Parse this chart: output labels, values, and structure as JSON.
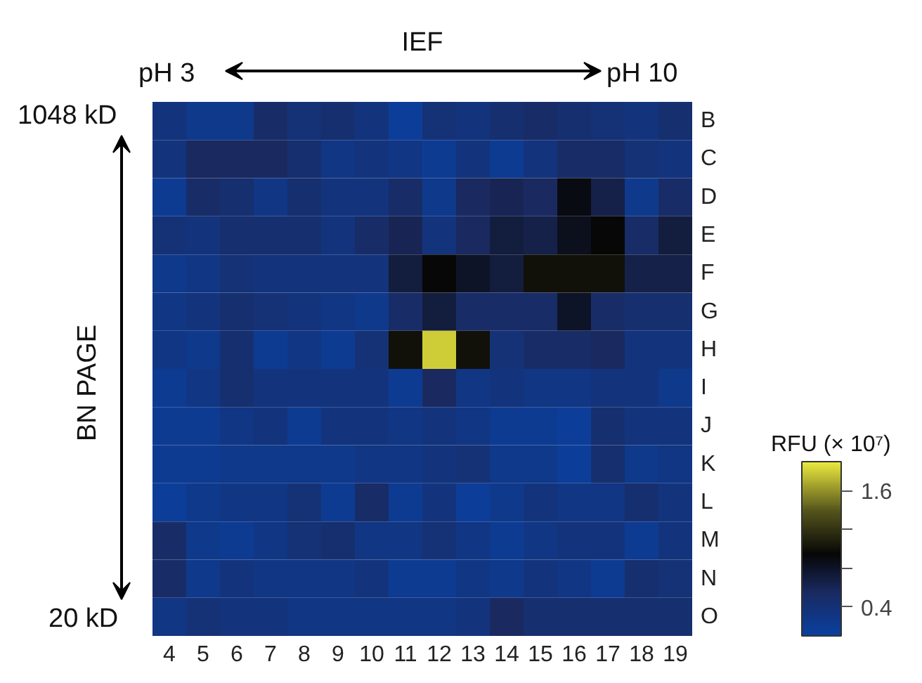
{
  "chart_data": {
    "type": "heatmap",
    "categories": [
      "4",
      "5",
      "6",
      "7",
      "8",
      "9",
      "10",
      "11",
      "12",
      "13",
      "14",
      "15",
      "16",
      "17",
      "18",
      "19"
    ],
    "y_categories": [
      "B",
      "C",
      "D",
      "E",
      "F",
      "G",
      "H",
      "I",
      "J",
      "K",
      "L",
      "M",
      "N",
      "O"
    ],
    "cells": [
      [
        0.35,
        0.25,
        0.25,
        0.5,
        0.4,
        0.45,
        0.35,
        0.15,
        0.4,
        0.35,
        0.45,
        0.5,
        0.45,
        0.4,
        0.35,
        0.45
      ],
      [
        0.35,
        0.55,
        0.55,
        0.55,
        0.45,
        0.3,
        0.35,
        0.3,
        0.2,
        0.35,
        0.2,
        0.35,
        0.5,
        0.5,
        0.4,
        0.35
      ],
      [
        0.2,
        0.5,
        0.45,
        0.3,
        0.45,
        0.35,
        0.35,
        0.5,
        0.25,
        0.55,
        0.6,
        0.55,
        0.9,
        0.65,
        0.25,
        0.5
      ],
      [
        0.4,
        0.35,
        0.45,
        0.45,
        0.45,
        0.35,
        0.5,
        0.6,
        0.35,
        0.55,
        0.7,
        0.65,
        0.85,
        0.95,
        0.5,
        0.7
      ],
      [
        0.25,
        0.3,
        0.4,
        0.35,
        0.35,
        0.35,
        0.35,
        0.7,
        0.95,
        0.8,
        0.7,
        1.0,
        1.0,
        1.0,
        0.65,
        0.65
      ],
      [
        0.3,
        0.35,
        0.45,
        0.4,
        0.35,
        0.3,
        0.25,
        0.5,
        0.7,
        0.5,
        0.5,
        0.5,
        0.8,
        0.5,
        0.45,
        0.45
      ],
      [
        0.3,
        0.25,
        0.45,
        0.2,
        0.3,
        0.2,
        0.4,
        1.0,
        1.8,
        1.0,
        0.4,
        0.5,
        0.5,
        0.55,
        0.35,
        0.35
      ],
      [
        0.2,
        0.3,
        0.45,
        0.35,
        0.35,
        0.35,
        0.35,
        0.2,
        0.55,
        0.3,
        0.35,
        0.3,
        0.3,
        0.35,
        0.35,
        0.25
      ],
      [
        0.2,
        0.2,
        0.3,
        0.35,
        0.2,
        0.35,
        0.35,
        0.3,
        0.35,
        0.3,
        0.2,
        0.2,
        0.15,
        0.45,
        0.35,
        0.35
      ],
      [
        0.2,
        0.2,
        0.25,
        0.25,
        0.25,
        0.25,
        0.3,
        0.3,
        0.35,
        0.4,
        0.25,
        0.25,
        0.15,
        0.45,
        0.25,
        0.3
      ],
      [
        0.15,
        0.25,
        0.3,
        0.3,
        0.4,
        0.2,
        0.5,
        0.2,
        0.35,
        0.15,
        0.25,
        0.35,
        0.3,
        0.3,
        0.45,
        0.35
      ],
      [
        0.5,
        0.25,
        0.2,
        0.3,
        0.4,
        0.45,
        0.3,
        0.3,
        0.4,
        0.3,
        0.2,
        0.3,
        0.35,
        0.35,
        0.2,
        0.35
      ],
      [
        0.5,
        0.25,
        0.35,
        0.3,
        0.3,
        0.3,
        0.35,
        0.2,
        0.2,
        0.3,
        0.25,
        0.35,
        0.3,
        0.2,
        0.45,
        0.4
      ],
      [
        0.3,
        0.4,
        0.35,
        0.35,
        0.3,
        0.3,
        0.3,
        0.3,
        0.3,
        0.35,
        0.55,
        0.45,
        0.45,
        0.45,
        0.45,
        0.45
      ]
    ],
    "clim": [
      0.1,
      1.9
    ],
    "cticks": [
      0.4,
      {
        "value": 0.8,
        "label": null
      },
      {
        "value": 1.2,
        "label": null
      },
      1.6
    ],
    "clabel": "RFU (× 10⁷)",
    "annotations": [
      "IEF",
      "pH 3",
      "pH 10",
      "BN PAGE",
      "1048 kD",
      "20 kD"
    ]
  }
}
